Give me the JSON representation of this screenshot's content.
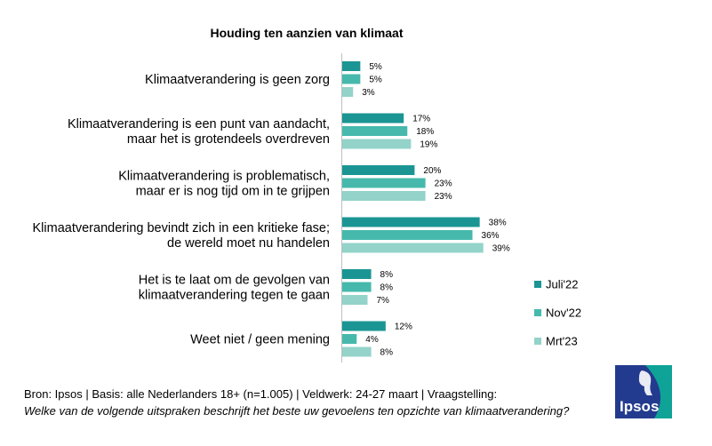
{
  "chart_data": {
    "type": "bar",
    "orientation": "horizontal",
    "title": "Houding ten aanzien van klimaat",
    "categories": [
      [
        "Klimaatverandering is geen zorg"
      ],
      [
        "Klimaatverandering is een punt van aandacht,",
        "maar het is grotendeels overdreven"
      ],
      [
        "Klimaatverandering is problematisch,",
        "maar er is nog tijd om in te grijpen"
      ],
      [
        "Klimaatverandering bevindt zich in een kritieke fase;",
        "de wereld moet nu handelen"
      ],
      [
        "Het is te laat om de gevolgen van",
        "klimaatverandering tegen te gaan"
      ],
      [
        "Weet niet / geen mening"
      ]
    ],
    "series": [
      {
        "name": "Juli'22",
        "values": [
          5,
          17,
          20,
          38,
          8,
          12
        ],
        "color": "#1a9593"
      },
      {
        "name": "Nov'22",
        "values": [
          5,
          18,
          23,
          36,
          8,
          4
        ],
        "color": "#46b9ac"
      },
      {
        "name": "Mrt'23",
        "values": [
          3,
          19,
          23,
          39,
          7,
          8
        ],
        "color": "#93d3c9"
      }
    ],
    "value_suffix": "%",
    "legend_position": "right",
    "grid": false
  },
  "footer": {
    "source": "Bron: Ipsos | Basis: alle Nederlanders 18+ (n=1.005) | Veldwerk: 24-27 maart | Vraagstelling:",
    "question": "Welke van de volgende uitspraken beschrijft het beste uw gevoelens ten opzichte van klimaatverandering?"
  },
  "logo": {
    "text": "Ipsos",
    "colors": {
      "blue": "#233b8e",
      "green": "#0fa398"
    }
  }
}
